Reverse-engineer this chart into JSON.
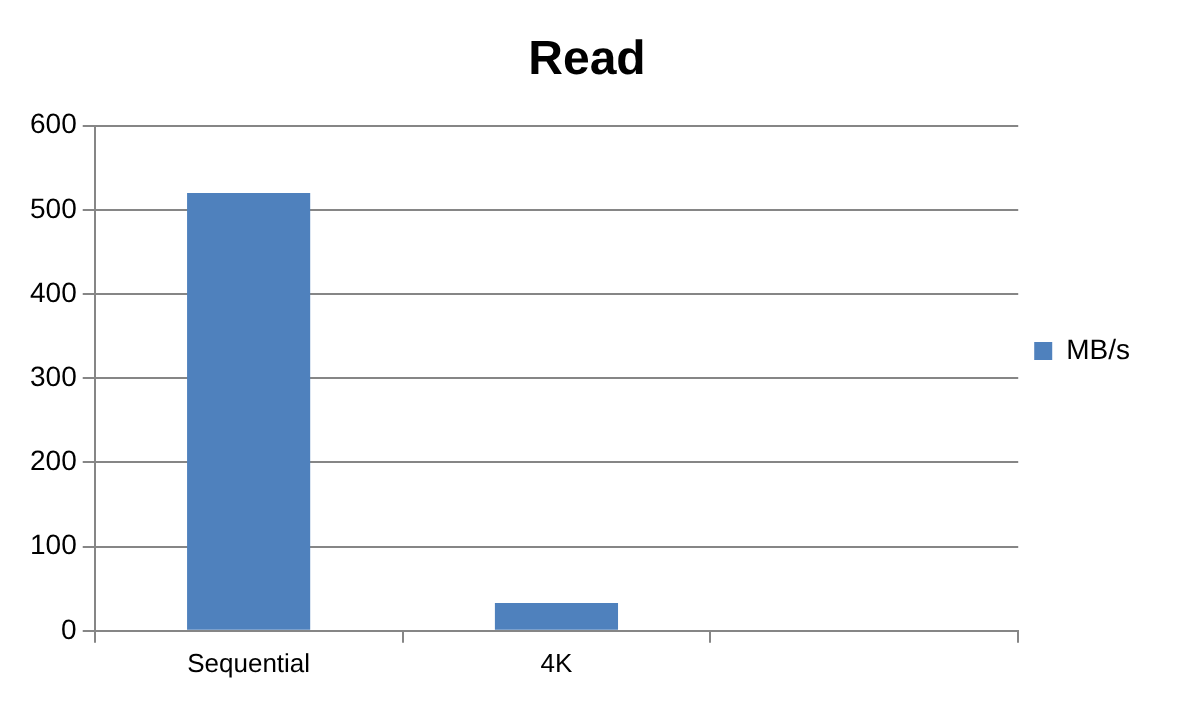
{
  "chart_data": {
    "type": "bar",
    "title": "Read",
    "categories": [
      "Sequential",
      "4K",
      null
    ],
    "series": [
      {
        "name": "MB/s",
        "color": "#4f81bd",
        "values": [
          520,
          33,
          null
        ]
      }
    ],
    "ylim": [
      0,
      600
    ],
    "yticks": [
      0,
      100,
      200,
      300,
      400,
      500,
      600
    ],
    "grid": "y",
    "legend": "right"
  }
}
